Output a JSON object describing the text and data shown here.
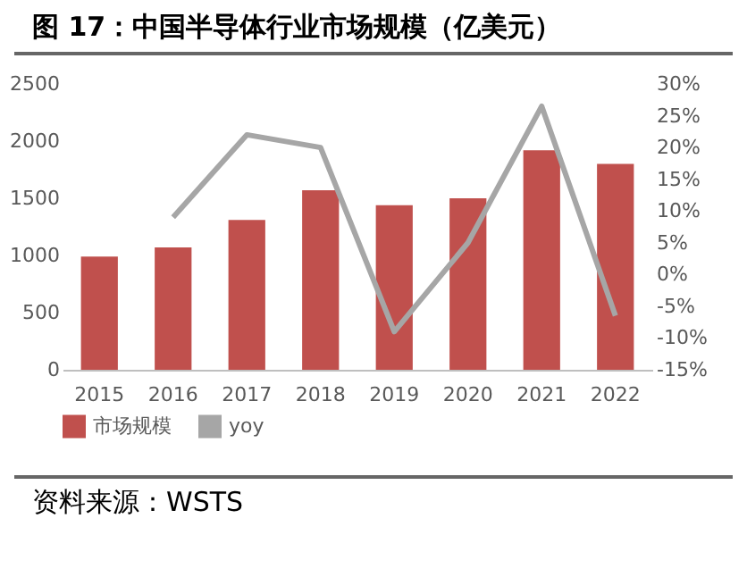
{
  "chart_data": {
    "type": "bar",
    "title": "图 17：中国半导体行业市场规模（亿美元）",
    "categories": [
      "2015",
      "2016",
      "2017",
      "2018",
      "2019",
      "2020",
      "2021",
      "2022"
    ],
    "series": [
      {
        "name": "市场规模",
        "color": "#c0504d",
        "values": [
          990,
          1070,
          1310,
          1570,
          1440,
          1500,
          1920,
          1800
        ]
      },
      {
        "name": "yoy",
        "type": "line",
        "axis": "y2",
        "color": "#a6a6a6",
        "values": [
          null,
          9,
          22,
          20,
          -9,
          5,
          26.5,
          -6.5
        ]
      }
    ],
    "ylim": [
      0,
      2500
    ],
    "yticks": [
      0,
      500,
      1000,
      1500,
      2000,
      2500
    ],
    "y2lim": [
      -15,
      30
    ],
    "y2ticks": [
      {
        "value": -15,
        "label": "-15%"
      },
      {
        "value": -10,
        "label": "-10%"
      },
      {
        "value": -5,
        "label": "-5%"
      },
      {
        "value": 0,
        "label": "0%"
      },
      {
        "value": 5,
        "label": "5%"
      },
      {
        "value": 10,
        "label": "10%"
      },
      {
        "value": 15,
        "label": "15%"
      },
      {
        "value": 20,
        "label": "20%"
      },
      {
        "value": 25,
        "label": "25%"
      },
      {
        "value": 30,
        "label": "30%"
      }
    ],
    "legend": "bottom",
    "grid": false,
    "annotations": [
      "资料来源：WSTS"
    ]
  }
}
